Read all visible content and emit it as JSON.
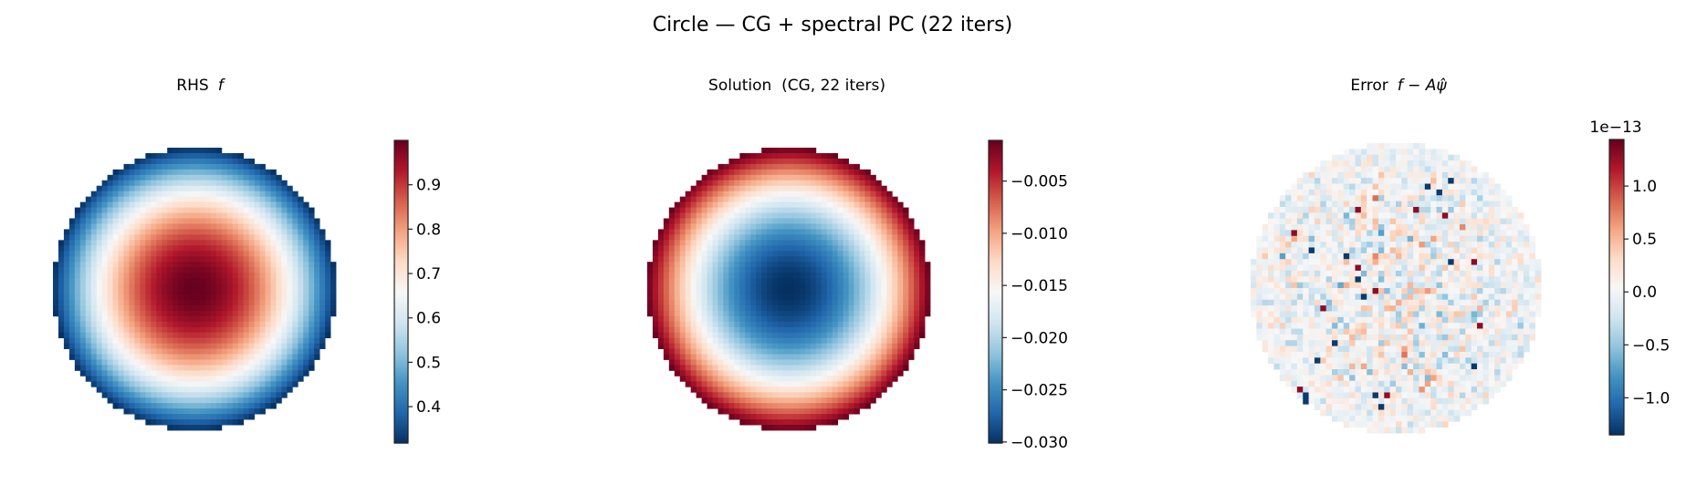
{
  "figure": {
    "suptitle": "Circle — CG + spectral PC (22 iters)"
  },
  "colormap": [
    "#053061",
    "#2166ac",
    "#4393c3",
    "#92c5de",
    "#d1e5f0",
    "#f7f7f7",
    "#fddbc7",
    "#f4a582",
    "#d6604d",
    "#b2182b",
    "#67001f"
  ],
  "chart_data": [
    {
      "type": "heatmap",
      "title": "RHS  f",
      "title_plain": "RHS",
      "title_math": "f",
      "domain": "circle",
      "colormap_name": "RdBu_r",
      "center_value": 1.0,
      "edge_value": 0.318,
      "clim": [
        0.318,
        1.0
      ],
      "colorbar_ticks": [
        0.4,
        0.5,
        0.6,
        0.7,
        0.8,
        0.9
      ],
      "colorbar_tick_labels": [
        "0.4",
        "0.5",
        "0.6",
        "0.7",
        "0.8",
        "0.9"
      ]
    },
    {
      "type": "heatmap",
      "title": "Solution  (CG, 22 iters)",
      "domain": "circle",
      "colormap_name": "RdBu_r",
      "center_value": -0.0301,
      "edge_value": -0.0011,
      "clim": [
        -0.0301,
        -0.0011
      ],
      "colorbar_ticks": [
        -0.03,
        -0.025,
        -0.02,
        -0.015,
        -0.01,
        -0.005
      ],
      "colorbar_tick_labels": [
        "−0.030",
        "−0.025",
        "−0.020",
        "−0.015",
        "−0.010",
        "−0.005"
      ]
    },
    {
      "type": "heatmap",
      "title": "Error  f − Aψ̂",
      "title_plain": "Error",
      "title_math": "f − Aψ̂",
      "domain": "circle",
      "colormap_name": "RdBu_r",
      "distribution": "random noise",
      "clim": [
        -1.35e-13,
        1.44e-13
      ],
      "colorbar_offset_label": "1e−13",
      "colorbar_ticks": [
        -1.0,
        -0.5,
        0.0,
        0.5,
        1.0
      ],
      "colorbar_tick_labels": [
        "−1.0",
        "−0.5",
        "0.0",
        "0.5",
        "1.0"
      ]
    }
  ]
}
